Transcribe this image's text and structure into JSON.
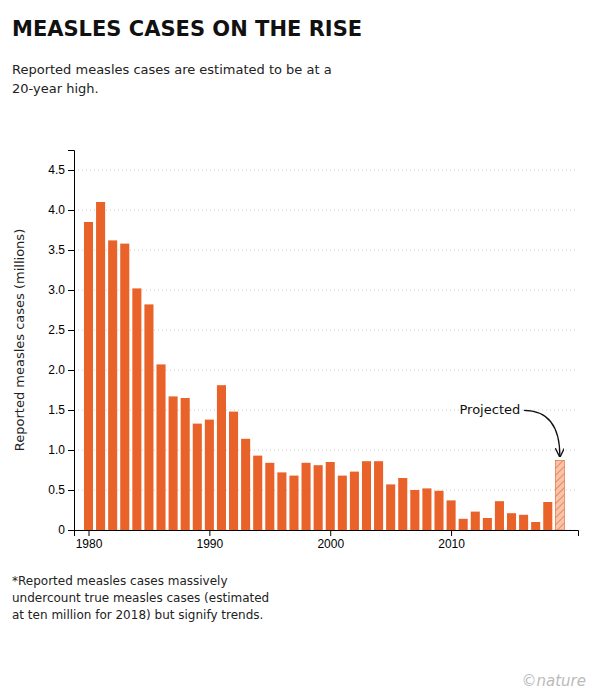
{
  "chart_data": {
    "type": "bar",
    "title": "MEASLES CASES ON THE RISE",
    "subtitle": "Reported measles cases are estimated to be at a\n20-year high.",
    "ylabel": "Reported measles cases (millions)",
    "footnote": "*Reported measles cases massively\nundercount true measles cases (estimated\nat ten million for 2018) but signify trends.",
    "credit": "©nature",
    "x": [
      1980,
      1981,
      1982,
      1983,
      1984,
      1985,
      1986,
      1987,
      1988,
      1989,
      1990,
      1991,
      1992,
      1993,
      1994,
      1995,
      1996,
      1997,
      1998,
      1999,
      2000,
      2001,
      2002,
      2003,
      2004,
      2005,
      2006,
      2007,
      2008,
      2009,
      2010,
      2011,
      2012,
      2013,
      2014,
      2015,
      2016,
      2017,
      2018,
      2019
    ],
    "values": [
      3.85,
      4.1,
      3.62,
      3.58,
      3.02,
      2.82,
      2.07,
      1.67,
      1.65,
      1.33,
      1.38,
      1.81,
      1.48,
      1.14,
      0.93,
      0.84,
      0.72,
      0.68,
      0.84,
      0.81,
      0.85,
      0.68,
      0.73,
      0.86,
      0.86,
      0.57,
      0.65,
      0.5,
      0.52,
      0.49,
      0.37,
      0.14,
      0.23,
      0.15,
      0.36,
      0.21,
      0.19,
      0.1,
      0.35,
      0.87
    ],
    "colors": [
      "#E8622A",
      "#E8622A",
      "#E8622A",
      "#E8622A",
      "#E8622A",
      "#E8622A",
      "#E8622A",
      "#E8622A",
      "#E8622A",
      "#E8622A",
      "#E8622A",
      "#E8622A",
      "#E8622A",
      "#E8622A",
      "#E8622A",
      "#E8622A",
      "#E8622A",
      "#E8622A",
      "#E8622A",
      "#E8622A",
      "#E8622A",
      "#E8622A",
      "#E8622A",
      "#E8622A",
      "#E8622A",
      "#E8622A",
      "#E8622A",
      "#E8622A",
      "#E8622A",
      "#E8622A",
      "#E8622A",
      "#E8622A",
      "#E8622A",
      "#E8622A",
      "#E8622A",
      "#E8622A",
      "#E8622A",
      "#E8622A",
      "#E8622A",
      "#F5C4AA"
    ],
    "annotations": [
      {
        "text": "Projected",
        "x": 2019
      }
    ],
    "xlim": [
      1978.8,
      2020.5
    ],
    "xticks": [
      1980,
      1990,
      2000,
      2010
    ],
    "ylim": [
      0,
      4.75
    ],
    "yticks": [
      0,
      0.5,
      {
        "value": 1.0,
        "label": "1.0"
      },
      1.5,
      {
        "value": 2.0,
        "label": "2.0"
      },
      2.5,
      {
        "value": 3.0,
        "label": "3.0"
      },
      3.5,
      {
        "value": 4.0,
        "label": "4.0"
      },
      4.5
    ],
    "grid": true
  }
}
